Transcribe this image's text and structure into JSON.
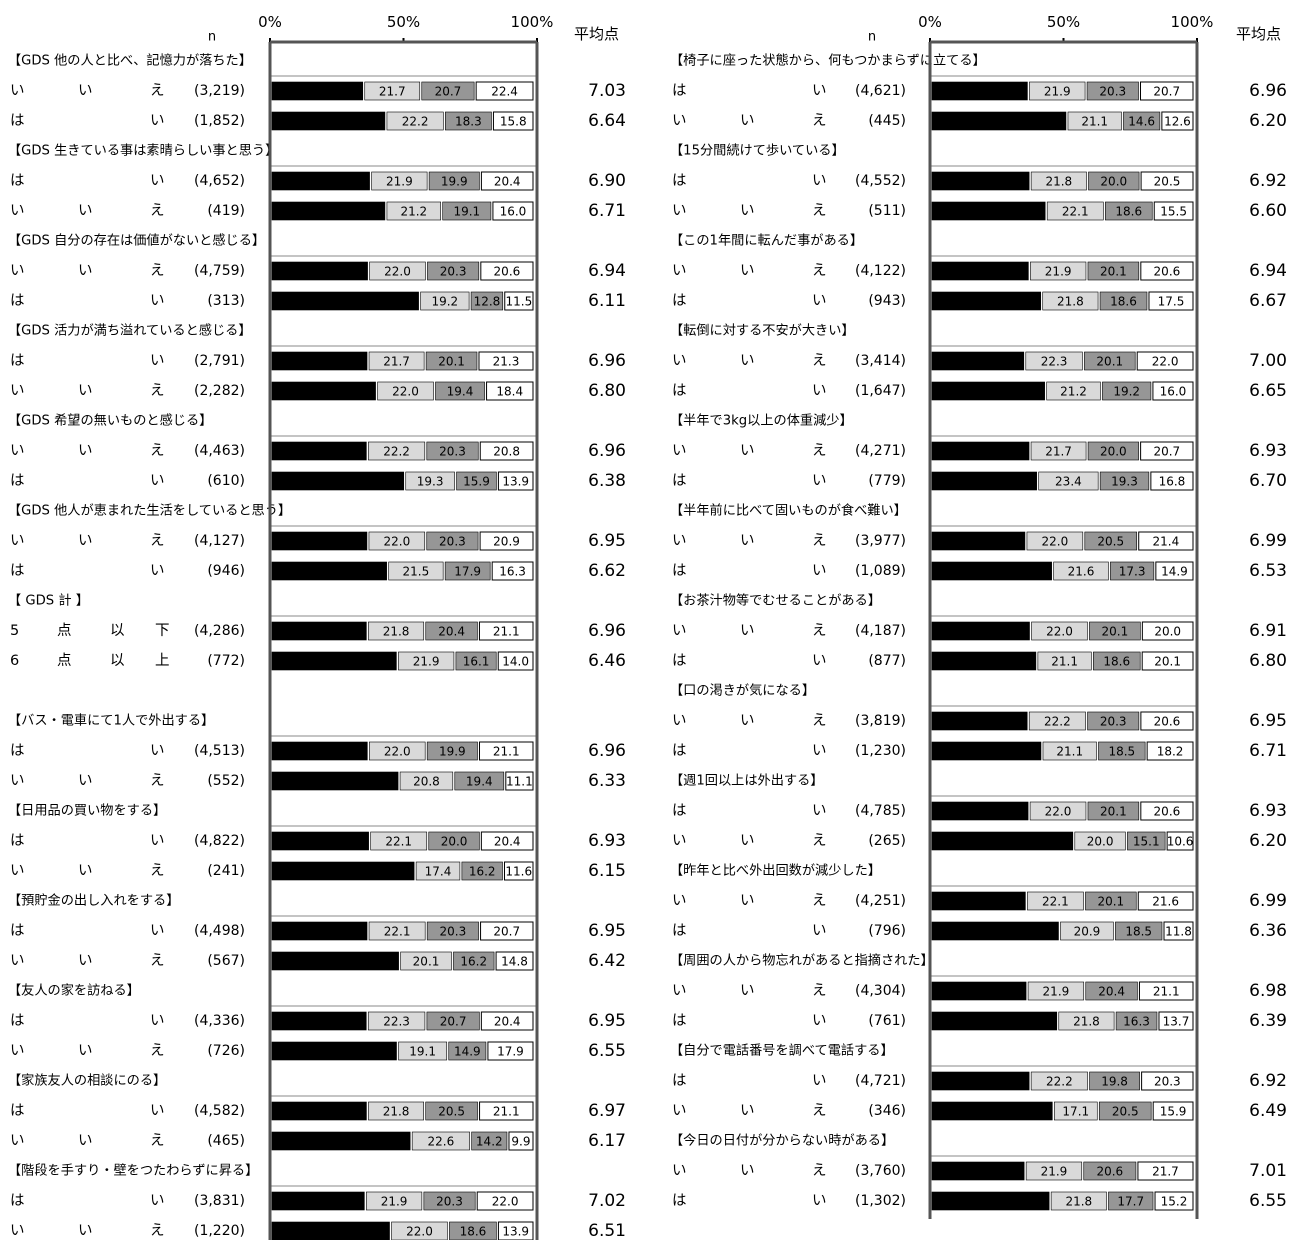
{
  "chart_data": [
    {
      "type": "bar",
      "orientation": "horizontal",
      "stacked": true,
      "axis_ticks": [
        "0%",
        "50%",
        "100%"
      ],
      "n_header": "n",
      "avg_header": "平均点",
      "colors": [
        "#000000",
        "#d9d9d9",
        "#969696",
        "#ffffff"
      ],
      "groups": [
        {
          "title": "【GDS 他の人と比べ、記憶力が落ちた】",
          "rows": [
            {
              "label": [
                "い",
                "い",
                "え"
              ],
              "n": "(3,219)",
              "values": [
                35.3,
                21.7,
                20.7,
                22.4
              ],
              "avg": "7.03"
            },
            {
              "label": [
                "は",
                "",
                "い"
              ],
              "n": "(1,852)",
              "values": [
                43.7,
                22.2,
                18.3,
                15.8
              ],
              "avg": "6.64"
            }
          ]
        },
        {
          "title": "【GDS 生きている事は素晴らしい事と思う】",
          "rows": [
            {
              "label": [
                "は",
                "",
                "い"
              ],
              "n": "(4,652)",
              "values": [
                37.9,
                21.9,
                19.9,
                20.4
              ],
              "avg": "6.90"
            },
            {
              "label": [
                "い",
                "い",
                "え"
              ],
              "n": "(419)",
              "values": [
                43.7,
                21.2,
                19.1,
                16.0
              ],
              "avg": "6.71"
            }
          ]
        },
        {
          "title": "【GDS 自分の存在は価値がないと感じる】",
          "rows": [
            {
              "label": [
                "い",
                "い",
                "え"
              ],
              "n": "(4,759)",
              "values": [
                37.1,
                22.0,
                20.3,
                20.6
              ],
              "avg": "6.94"
            },
            {
              "label": [
                "は",
                "",
                "い"
              ],
              "n": "(313)",
              "values": [
                56.5,
                19.2,
                12.8,
                11.5
              ],
              "avg": "6.11"
            }
          ]
        },
        {
          "title": "【GDS 活力が満ち溢れていると感じる】",
          "rows": [
            {
              "label": [
                "は",
                "",
                "い"
              ],
              "n": "(2,791)",
              "values": [
                36.9,
                21.7,
                20.1,
                21.3
              ],
              "avg": "6.96"
            },
            {
              "label": [
                "い",
                "い",
                "え"
              ],
              "n": "(2,282)",
              "values": [
                40.1,
                22.0,
                19.4,
                18.4
              ],
              "avg": "6.80"
            }
          ]
        },
        {
          "title": "【GDS 希望の無いものと感じる】",
          "rows": [
            {
              "label": [
                "い",
                "い",
                "え"
              ],
              "n": "(4,463)",
              "values": [
                36.6,
                22.2,
                20.3,
                20.8
              ],
              "avg": "6.96"
            },
            {
              "label": [
                "は",
                "",
                "い"
              ],
              "n": "(610)",
              "values": [
                50.8,
                19.3,
                15.9,
                13.9
              ],
              "avg": "6.38"
            }
          ]
        },
        {
          "title": "【GDS 他人が恵まれた生活をしていると思う】",
          "rows": [
            {
              "label": [
                "い",
                "い",
                "え"
              ],
              "n": "(4,127)",
              "values": [
                36.9,
                22.0,
                20.3,
                20.9
              ],
              "avg": "6.95"
            },
            {
              "label": [
                "は",
                "",
                "い"
              ],
              "n": "(946)",
              "values": [
                44.4,
                21.5,
                17.9,
                16.3
              ],
              "avg": "6.62"
            }
          ]
        },
        {
          "title": "【 GDS 計 】",
          "rows": [
            {
              "label": [
                "5",
                "点",
                "以",
                "下"
              ],
              "n": "(4,286)",
              "values": [
                36.6,
                21.8,
                20.4,
                21.1
              ],
              "avg": "6.96"
            },
            {
              "label": [
                "6",
                "点",
                "以",
                "上"
              ],
              "n": "(772)",
              "values": [
                48.1,
                21.9,
                16.1,
                14.0
              ],
              "avg": "6.46"
            }
          ]
        },
        {
          "title": "【バス・電車にて1人で外出する】",
          "rows": [
            {
              "label": [
                "は",
                "",
                "い"
              ],
              "n": "(4,513)",
              "values": [
                37.0,
                22.0,
                19.9,
                21.1
              ],
              "avg": "6.96"
            },
            {
              "label": [
                "い",
                "い",
                "え"
              ],
              "n": "(552)",
              "values": [
                48.7,
                20.8,
                19.4,
                11.1
              ],
              "avg": "6.33"
            }
          ]
        },
        {
          "title": "【日用品の買い物をする】",
          "rows": [
            {
              "label": [
                "は",
                "",
                "い"
              ],
              "n": "(4,822)",
              "values": [
                37.5,
                22.1,
                20.0,
                20.4
              ],
              "avg": "6.93"
            },
            {
              "label": [
                "い",
                "い",
                "え"
              ],
              "n": "(241)",
              "values": [
                54.8,
                17.4,
                16.2,
                11.6
              ],
              "avg": "6.15"
            }
          ]
        },
        {
          "title": "【預貯金の出し入れをする】",
          "rows": [
            {
              "label": [
                "は",
                "",
                "い"
              ],
              "n": "(4,498)",
              "values": [
                36.9,
                22.1,
                20.3,
                20.7
              ],
              "avg": "6.95"
            },
            {
              "label": [
                "い",
                "い",
                "え"
              ],
              "n": "(567)",
              "values": [
                48.9,
                20.1,
                16.2,
                14.8
              ],
              "avg": "6.42"
            }
          ]
        },
        {
          "title": "【友人の家を訪ねる】",
          "rows": [
            {
              "label": [
                "は",
                "",
                "い"
              ],
              "n": "(4,336)",
              "values": [
                36.6,
                22.3,
                20.7,
                20.4
              ],
              "avg": "6.95"
            },
            {
              "label": [
                "い",
                "い",
                "え"
              ],
              "n": "(726)",
              "values": [
                48.1,
                19.1,
                14.9,
                17.9
              ],
              "avg": "6.55"
            }
          ]
        },
        {
          "title": "【家族友人の相談にのる】",
          "rows": [
            {
              "label": [
                "は",
                "",
                "い"
              ],
              "n": "(4,582)",
              "values": [
                36.7,
                21.8,
                20.5,
                21.1
              ],
              "avg": "6.97"
            },
            {
              "label": [
                "い",
                "い",
                "え"
              ],
              "n": "(465)",
              "values": [
                53.3,
                22.6,
                14.2,
                9.9
              ],
              "avg": "6.17"
            }
          ]
        },
        {
          "title": "【階段を手すり・壁をつたわらずに昇る】",
          "rows": [
            {
              "label": [
                "は",
                "",
                "い"
              ],
              "n": "(3,831)",
              "values": [
                35.9,
                21.9,
                20.3,
                22.0
              ],
              "avg": "7.02"
            },
            {
              "label": [
                "い",
                "い",
                "え"
              ],
              "n": "(1,220)",
              "values": [
                45.4,
                22.0,
                18.6,
                13.9
              ],
              "avg": "6.51"
            }
          ]
        }
      ]
    },
    {
      "type": "bar",
      "orientation": "horizontal",
      "stacked": true,
      "axis_ticks": [
        "0%",
        "50%",
        "100%"
      ],
      "n_header": "n",
      "avg_header": "平均点",
      "colors": [
        "#000000",
        "#d9d9d9",
        "#969696",
        "#ffffff"
      ],
      "groups": [
        {
          "title": "【椅子に座った状態から、何もつかまらずに立てる】",
          "rows": [
            {
              "label": [
                "は",
                "",
                "い"
              ],
              "n": "(4,621)",
              "values": [
                37.0,
                21.9,
                20.3,
                20.7
              ],
              "avg": "6.96"
            },
            {
              "label": [
                "い",
                "い",
                "え"
              ],
              "n": "(445)",
              "values": [
                51.7,
                21.1,
                14.6,
                12.6
              ],
              "avg": "6.20"
            }
          ]
        },
        {
          "title": "【15分間続けて歩いている】",
          "rows": [
            {
              "label": [
                "は",
                "",
                "い"
              ],
              "n": "(4,552)",
              "values": [
                37.7,
                21.8,
                20.0,
                20.5
              ],
              "avg": "6.92"
            },
            {
              "label": [
                "い",
                "い",
                "え"
              ],
              "n": "(511)",
              "values": [
                43.8,
                22.1,
                18.6,
                15.5
              ],
              "avg": "6.60"
            }
          ]
        },
        {
          "title": "【この1年間に転んだ事がある】",
          "rows": [
            {
              "label": [
                "い",
                "い",
                "え"
              ],
              "n": "(4,122)",
              "values": [
                37.4,
                21.9,
                20.1,
                20.6
              ],
              "avg": "6.94"
            },
            {
              "label": [
                "は",
                "",
                "い"
              ],
              "n": "(943)",
              "values": [
                42.1,
                21.8,
                18.6,
                17.5
              ],
              "avg": "6.67"
            }
          ]
        },
        {
          "title": "【転倒に対する不安が大きい】",
          "rows": [
            {
              "label": [
                "い",
                "い",
                "え"
              ],
              "n": "(3,414)",
              "values": [
                35.7,
                22.3,
                20.1,
                22.0
              ],
              "avg": "7.00"
            },
            {
              "label": [
                "は",
                "",
                "い"
              ],
              "n": "(1,647)",
              "values": [
                43.6,
                21.2,
                19.2,
                16.0
              ],
              "avg": "6.65"
            }
          ]
        },
        {
          "title": "【半年で3kg以上の体重減少】",
          "rows": [
            {
              "label": [
                "い",
                "い",
                "え"
              ],
              "n": "(4,271)",
              "values": [
                37.7,
                21.7,
                20.0,
                20.7
              ],
              "avg": "6.93"
            },
            {
              "label": [
                "は",
                "",
                "い"
              ],
              "n": "(779)",
              "values": [
                40.6,
                23.4,
                19.3,
                16.8
              ],
              "avg": "6.70"
            }
          ]
        },
        {
          "title": "【半年前に比べて固いものが食べ難い】",
          "rows": [
            {
              "label": [
                "い",
                "い",
                "え"
              ],
              "n": "(3,977)",
              "values": [
                36.1,
                22.0,
                20.5,
                21.4
              ],
              "avg": "6.99"
            },
            {
              "label": [
                "は",
                "",
                "い"
              ],
              "n": "(1,089)",
              "values": [
                46.3,
                21.6,
                17.3,
                14.9
              ],
              "avg": "6.53"
            }
          ]
        },
        {
          "title": "【お茶汁物等でむせることがある】",
          "rows": [
            {
              "label": [
                "い",
                "い",
                "え"
              ],
              "n": "(4,187)",
              "values": [
                37.8,
                22.0,
                20.1,
                20.0
              ],
              "avg": "6.91"
            },
            {
              "label": [
                "は",
                "",
                "い"
              ],
              "n": "(877)",
              "values": [
                40.3,
                21.1,
                18.6,
                20.1
              ],
              "avg": "6.80"
            }
          ]
        },
        {
          "title": "【口の渇きが気になる】",
          "rows": [
            {
              "label": [
                "い",
                "い",
                "え"
              ],
              "n": "(3,819)",
              "values": [
                37.0,
                22.2,
                20.3,
                20.6
              ],
              "avg": "6.95"
            },
            {
              "label": [
                "は",
                "",
                "い"
              ],
              "n": "(1,230)",
              "values": [
                42.2,
                21.1,
                18.5,
                18.2
              ],
              "avg": "6.71"
            }
          ]
        },
        {
          "title": "【週1回以上は外出する】",
          "rows": [
            {
              "label": [
                "は",
                "",
                "い"
              ],
              "n": "(4,785)",
              "values": [
                37.3,
                22.0,
                20.1,
                20.6
              ],
              "avg": "6.93"
            },
            {
              "label": [
                "い",
                "い",
                "え"
              ],
              "n": "(265)",
              "values": [
                54.3,
                20.0,
                15.1,
                10.6
              ],
              "avg": "6.20"
            }
          ]
        },
        {
          "title": "【昨年と比べ外出回数が減少した】",
          "rows": [
            {
              "label": [
                "い",
                "い",
                "え"
              ],
              "n": "(4,251)",
              "values": [
                36.3,
                22.1,
                20.1,
                21.6
              ],
              "avg": "6.99"
            },
            {
              "label": [
                "は",
                "",
                "い"
              ],
              "n": "(796)",
              "values": [
                48.9,
                20.9,
                18.5,
                11.8
              ],
              "avg": "6.36"
            }
          ]
        },
        {
          "title": "【周囲の人から物忘れがあると指摘された】",
          "rows": [
            {
              "label": [
                "い",
                "い",
                "え"
              ],
              "n": "(4,304)",
              "values": [
                36.5,
                21.9,
                20.4,
                21.1
              ],
              "avg": "6.98"
            },
            {
              "label": [
                "は",
                "",
                "い"
              ],
              "n": "(761)",
              "values": [
                48.2,
                21.8,
                16.3,
                13.7
              ],
              "avg": "6.39"
            }
          ]
        },
        {
          "title": "【自分で電話番号を調べて電話する】",
          "rows": [
            {
              "label": [
                "は",
                "",
                "い"
              ],
              "n": "(4,721)",
              "values": [
                37.7,
                22.2,
                19.8,
                20.3
              ],
              "avg": "6.92"
            },
            {
              "label": [
                "い",
                "い",
                "え"
              ],
              "n": "(346)",
              "values": [
                46.5,
                17.1,
                20.5,
                15.9
              ],
              "avg": "6.49"
            }
          ]
        },
        {
          "title": "【今日の日付が分からない時がある】",
          "rows": [
            {
              "label": [
                "い",
                "い",
                "え"
              ],
              "n": "(3,760)",
              "values": [
                35.8,
                21.9,
                20.6,
                21.7
              ],
              "avg": "7.01"
            },
            {
              "label": [
                "は",
                "",
                "い"
              ],
              "n": "(1,302)",
              "values": [
                45.3,
                21.8,
                17.7,
                15.2
              ],
              "avg": "6.55"
            }
          ]
        }
      ]
    }
  ]
}
